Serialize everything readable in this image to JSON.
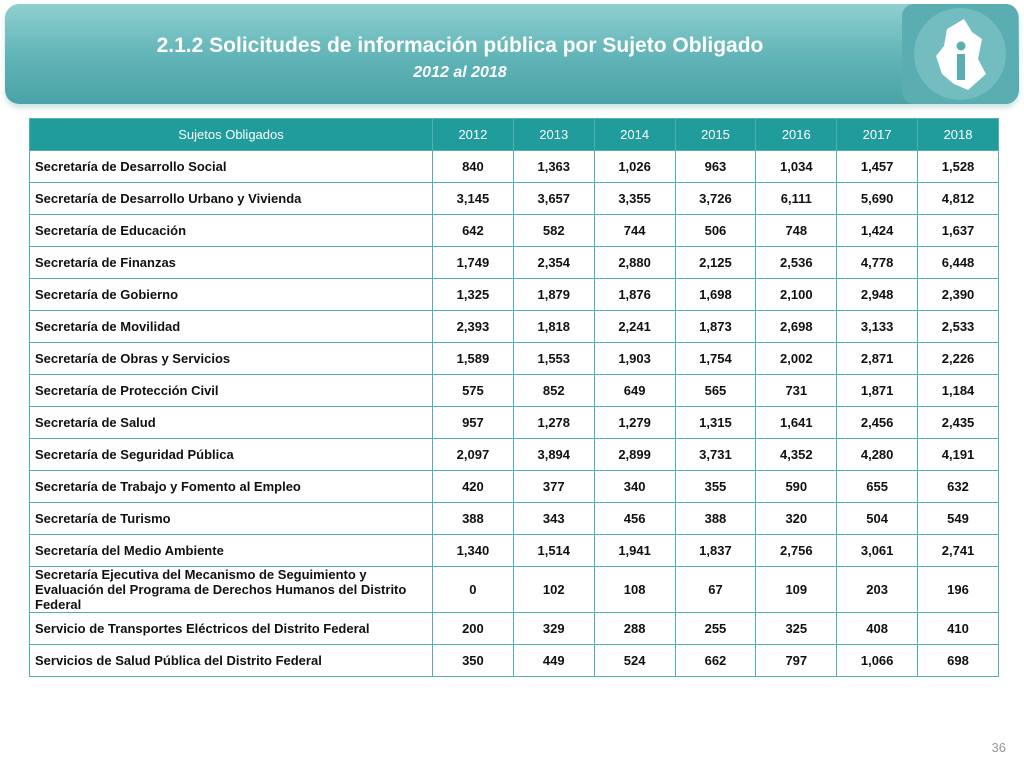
{
  "header": {
    "title": "2.1.2 Solicitudes de información pública por Sujeto Obligado",
    "subtitle": "2012 al 2018"
  },
  "table": {
    "columns": [
      "Sujetos Obligados",
      "2012",
      "2013",
      "2014",
      "2015",
      "2016",
      "2017",
      "2018"
    ],
    "rows": [
      [
        "Secretaría de Desarrollo Social",
        "840",
        "1,363",
        "1,026",
        "963",
        "1,034",
        "1,457",
        "1,528"
      ],
      [
        "Secretaría de Desarrollo Urbano y Vivienda",
        "3,145",
        "3,657",
        "3,355",
        "3,726",
        "6,111",
        "5,690",
        "4,812"
      ],
      [
        "Secretaría de Educación",
        "642",
        "582",
        "744",
        "506",
        "748",
        "1,424",
        "1,637"
      ],
      [
        "Secretaría de Finanzas",
        "1,749",
        "2,354",
        "2,880",
        "2,125",
        "2,536",
        "4,778",
        "6,448"
      ],
      [
        "Secretaría de Gobierno",
        "1,325",
        "1,879",
        "1,876",
        "1,698",
        "2,100",
        "2,948",
        "2,390"
      ],
      [
        "Secretaría de Movilidad",
        "2,393",
        "1,818",
        "2,241",
        "1,873",
        "2,698",
        "3,133",
        "2,533"
      ],
      [
        "Secretaría de Obras y Servicios",
        "1,589",
        "1,553",
        "1,903",
        "1,754",
        "2,002",
        "2,871",
        "2,226"
      ],
      [
        "Secretaría de Protección Civil",
        "575",
        "852",
        "649",
        "565",
        "731",
        "1,871",
        "1,184"
      ],
      [
        "Secretaría de Salud",
        "957",
        "1,278",
        "1,279",
        "1,315",
        "1,641",
        "2,456",
        "2,435"
      ],
      [
        "Secretaría de Seguridad Pública",
        "2,097",
        "3,894",
        "2,899",
        "3,731",
        "4,352",
        "4,280",
        "4,191"
      ],
      [
        "Secretaría de Trabajo y Fomento al Empleo",
        "420",
        "377",
        "340",
        "355",
        "590",
        "655",
        "632"
      ],
      [
        "Secretaría de Turismo",
        "388",
        "343",
        "456",
        "388",
        "320",
        "504",
        "549"
      ],
      [
        "Secretaría del Medio Ambiente",
        "1,340",
        "1,514",
        "1,941",
        "1,837",
        "2,756",
        "3,061",
        "2,741"
      ],
      [
        "Secretaría Ejecutiva del Mecanismo de Seguimiento y Evaluación del Programa de Derechos Humanos del Distrito Federal",
        "0",
        "102",
        "108",
        "67",
        "109",
        "203",
        "196"
      ],
      [
        "Servicio de Transportes Eléctricos del Distrito Federal",
        "200",
        "329",
        "288",
        "255",
        "325",
        "408",
        "410"
      ],
      [
        "Servicios de Salud Pública del Distrito Federal",
        "350",
        "449",
        "524",
        "662",
        "797",
        "1,066",
        "698"
      ]
    ]
  },
  "footer": {
    "page": "36"
  }
}
